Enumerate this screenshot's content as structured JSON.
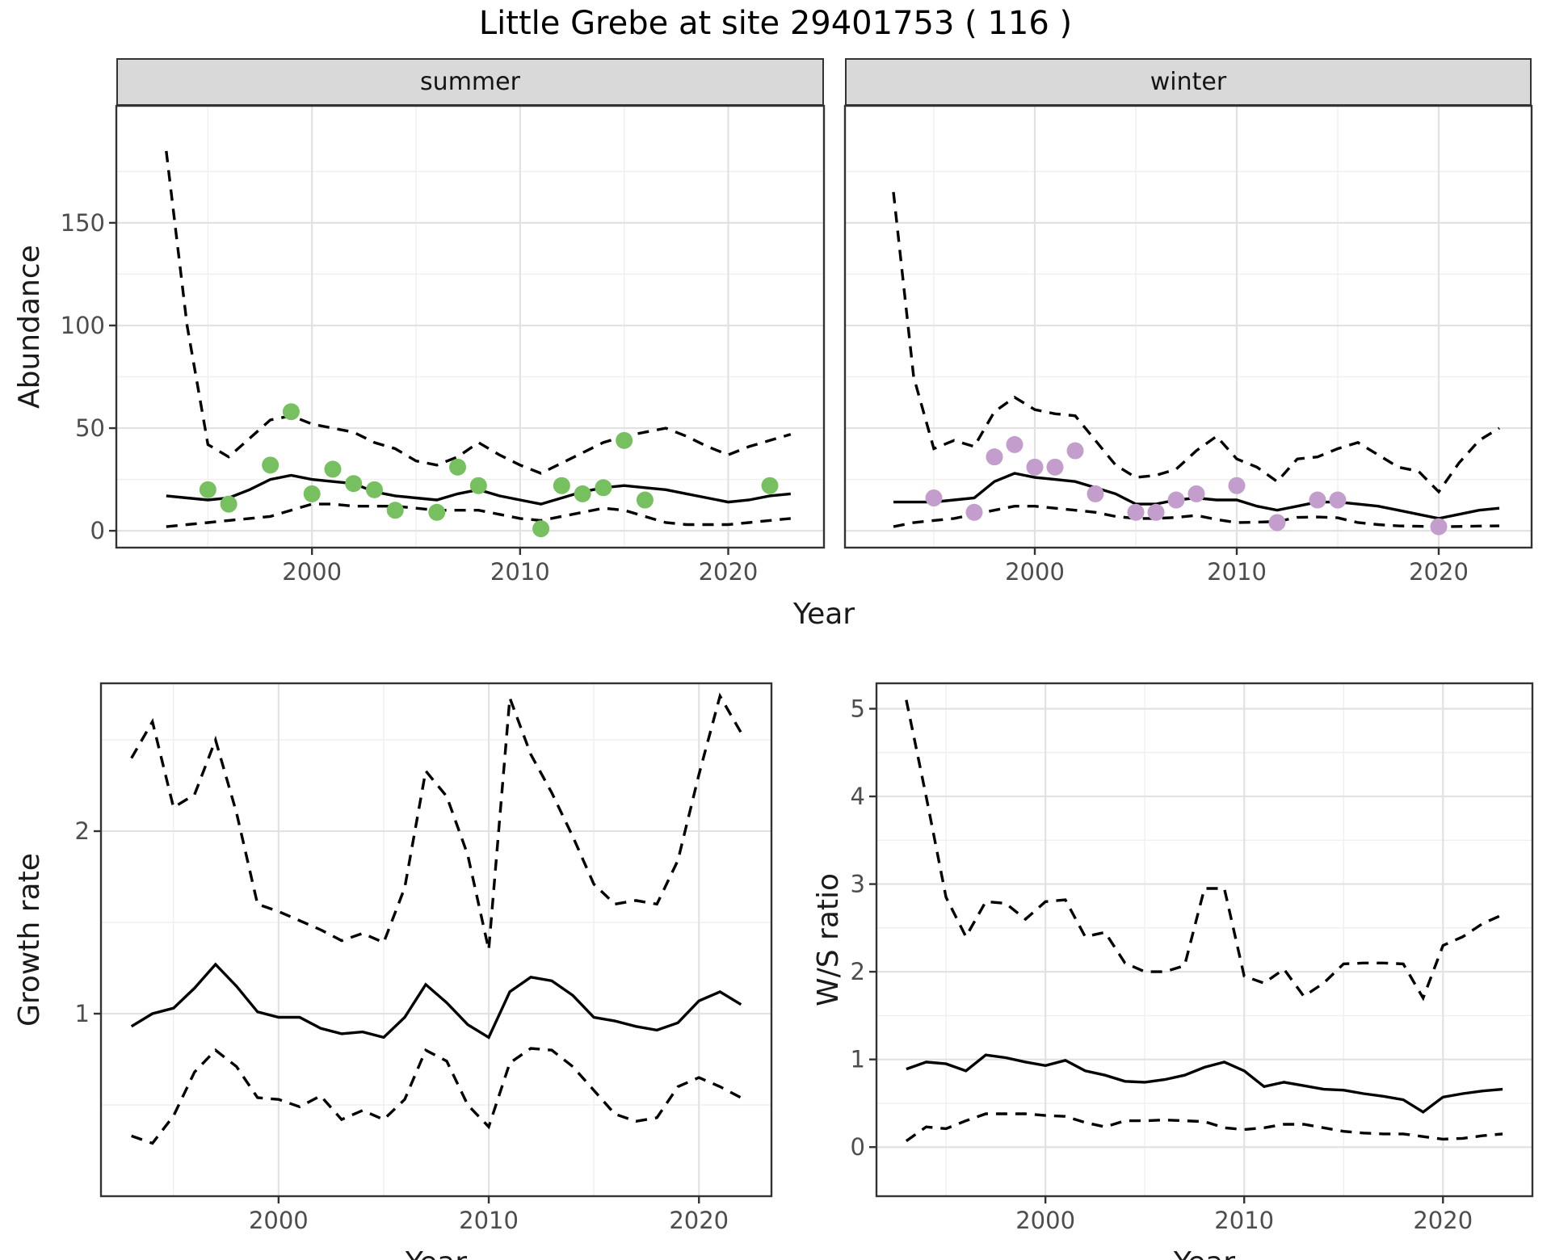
{
  "title": "Little Grebe at site 29401753 ( 116 )",
  "facets": {
    "summer": "summer",
    "winter": "winter"
  },
  "axes": {
    "x_title": "Year",
    "abundance_title": "Abundance",
    "growth_title": "Growth rate",
    "ws_title": "W/S ratio"
  },
  "colors": {
    "summer_points": "#77c05f",
    "winter_points": "#c39dcb",
    "line": "#000000",
    "grid_major": "#e2e2e2",
    "grid_minor": "#efefef",
    "strip_bg": "#d9d9d9",
    "panel_border": "#333333",
    "tick_text": "#4d4d4d"
  },
  "chart_data": [
    {
      "id": "abundance_summer",
      "type": "line",
      "facet_label": "summer",
      "ylabel": "Abundance",
      "xlabel": "Year",
      "xlim": [
        1990.6,
        2024.6
      ],
      "ylim": [
        -8.2,
        207
      ],
      "x_ticks": [
        2000,
        2010,
        2020
      ],
      "x_minor": [
        1995,
        2005,
        2015
      ],
      "y_ticks": [
        0,
        50,
        100,
        150
      ],
      "y_minor": [
        25,
        75,
        125,
        175
      ],
      "show_y_labels": true,
      "x": [
        1993,
        1994,
        1995,
        1996,
        1997,
        1998,
        1999,
        2000,
        2001,
        2002,
        2003,
        2004,
        2005,
        2006,
        2007,
        2008,
        2009,
        2010,
        2011,
        2012,
        2013,
        2014,
        2015,
        2016,
        2017,
        2018,
        2019,
        2020,
        2021,
        2022,
        2023
      ],
      "series": [
        {
          "name": "median",
          "style": "solid",
          "values": [
            17,
            16,
            15,
            16,
            20,
            25,
            27,
            25,
            24,
            23,
            19,
            17,
            16,
            15,
            18,
            20,
            17,
            15,
            13,
            16,
            19,
            21,
            22,
            21,
            20,
            18,
            16,
            14,
            15,
            17,
            18
          ]
        },
        {
          "name": "lower_ci",
          "style": "dashed",
          "values": [
            2,
            3,
            4,
            5,
            6,
            7,
            10,
            13,
            13,
            12,
            12,
            12,
            11,
            10,
            10,
            10,
            8,
            6,
            5,
            7,
            9,
            11,
            10,
            7,
            4,
            3,
            3,
            3,
            4,
            5,
            6
          ]
        },
        {
          "name": "upper_ci",
          "style": "dashed",
          "values": [
            185,
            100,
            42,
            36,
            45,
            54,
            56,
            52,
            50,
            48,
            43,
            40,
            34,
            32,
            36,
            43,
            37,
            32,
            28,
            33,
            38,
            43,
            46,
            48,
            50,
            46,
            41,
            37,
            41,
            44,
            47
          ]
        }
      ],
      "points": {
        "name": "observed_counts",
        "color_key": "summer_points",
        "xy": [
          [
            1995,
            20
          ],
          [
            1996,
            13
          ],
          [
            1998,
            32
          ],
          [
            1999,
            58
          ],
          [
            2000,
            18
          ],
          [
            2001,
            30
          ],
          [
            2002,
            23
          ],
          [
            2003,
            20
          ],
          [
            2004,
            10
          ],
          [
            2006,
            9
          ],
          [
            2007,
            31
          ],
          [
            2008,
            22
          ],
          [
            2011,
            1
          ],
          [
            2012,
            22
          ],
          [
            2013,
            18
          ],
          [
            2014,
            21
          ],
          [
            2015,
            44
          ],
          [
            2016,
            15
          ],
          [
            2022,
            22
          ]
        ]
      }
    },
    {
      "id": "abundance_winter",
      "type": "line",
      "facet_label": "winter",
      "ylabel": "Abundance",
      "xlabel": "Year",
      "xlim": [
        1990.6,
        2024.6
      ],
      "ylim": [
        -8.2,
        207
      ],
      "x_ticks": [
        2000,
        2010,
        2020
      ],
      "x_minor": [
        1995,
        2005,
        2015
      ],
      "y_ticks": [
        0,
        50,
        100,
        150
      ],
      "y_minor": [
        25,
        75,
        125,
        175
      ],
      "show_y_labels": false,
      "x": [
        1993,
        1994,
        1995,
        1996,
        1997,
        1998,
        1999,
        2000,
        2001,
        2002,
        2003,
        2004,
        2005,
        2006,
        2007,
        2008,
        2009,
        2010,
        2011,
        2012,
        2013,
        2014,
        2015,
        2016,
        2017,
        2018,
        2019,
        2020,
        2021,
        2022,
        2023
      ],
      "series": [
        {
          "name": "median",
          "style": "solid",
          "values": [
            14,
            14,
            14,
            15,
            16,
            24,
            28,
            26,
            25,
            24,
            21,
            18,
            13,
            13,
            15,
            16,
            15,
            15,
            12,
            10,
            12,
            14,
            14,
            13,
            12,
            10,
            8,
            6,
            8,
            10,
            11
          ]
        },
        {
          "name": "lower_ci",
          "style": "dashed",
          "values": [
            2,
            4,
            5,
            6,
            8,
            10,
            12,
            12,
            11,
            10,
            9,
            7,
            6,
            6,
            6.5,
            7.5,
            5.5,
            4,
            4.2,
            4.5,
            6.5,
            6.7,
            6.3,
            4,
            3,
            2.4,
            2.2,
            2,
            2.1,
            2.3,
            2.4
          ]
        },
        {
          "name": "upper_ci",
          "style": "dashed",
          "values": [
            165,
            75,
            40,
            44,
            41,
            58,
            65,
            59,
            57,
            56,
            44,
            32,
            26,
            27,
            30,
            39,
            46,
            35,
            31,
            24,
            35,
            36,
            40,
            43,
            37,
            31,
            29,
            19,
            33,
            44,
            50
          ]
        }
      ],
      "points": {
        "name": "observed_counts",
        "color_key": "winter_points",
        "xy": [
          [
            1995,
            16
          ],
          [
            1997,
            9
          ],
          [
            1998,
            36
          ],
          [
            1999,
            42
          ],
          [
            2000,
            31
          ],
          [
            2001,
            31
          ],
          [
            2002,
            39
          ],
          [
            2003,
            18
          ],
          [
            2005,
            9
          ],
          [
            2006,
            9
          ],
          [
            2007,
            15
          ],
          [
            2008,
            18
          ],
          [
            2010,
            22
          ],
          [
            2012,
            4
          ],
          [
            2014,
            15
          ],
          [
            2015,
            15
          ],
          [
            2020,
            2
          ]
        ]
      }
    },
    {
      "id": "growth_rate",
      "type": "line",
      "facet_label": null,
      "ylabel": "Growth rate",
      "xlabel": "Year",
      "xlim": [
        1991.55,
        2023.45
      ],
      "ylim": [
        0,
        2.81
      ],
      "x_ticks": [
        2000,
        2010,
        2020
      ],
      "x_minor": [
        1995,
        2005,
        2015
      ],
      "y_ticks": [
        1,
        2
      ],
      "y_minor": [
        0.5,
        1.5,
        2.5
      ],
      "show_y_labels": true,
      "x": [
        1993,
        1994,
        1995,
        1996,
        1997,
        1998,
        1999,
        2000,
        2001,
        2002,
        2003,
        2004,
        2005,
        2006,
        2007,
        2008,
        2009,
        2010,
        2011,
        2012,
        2013,
        2014,
        2015,
        2016,
        2017,
        2018,
        2019,
        2020,
        2021,
        2022
      ],
      "series": [
        {
          "name": "median",
          "style": "solid",
          "values": [
            0.93,
            1.0,
            1.03,
            1.14,
            1.27,
            1.15,
            1.01,
            0.98,
            0.98,
            0.92,
            0.89,
            0.9,
            0.87,
            0.98,
            1.16,
            1.06,
            0.94,
            0.87,
            1.12,
            1.2,
            1.18,
            1.1,
            0.98,
            0.96,
            0.93,
            0.91,
            0.95,
            1.07,
            1.12,
            1.05
          ]
        },
        {
          "name": "lower_ci",
          "style": "dashed",
          "values": [
            0.33,
            0.29,
            0.44,
            0.68,
            0.8,
            0.71,
            0.54,
            0.53,
            0.49,
            0.55,
            0.42,
            0.47,
            0.42,
            0.53,
            0.8,
            0.74,
            0.5,
            0.38,
            0.73,
            0.81,
            0.8,
            0.71,
            0.58,
            0.45,
            0.41,
            0.43,
            0.6,
            0.65,
            0.6,
            0.54
          ]
        },
        {
          "name": "upper_ci",
          "style": "dashed",
          "values": [
            2.4,
            2.6,
            2.13,
            2.2,
            2.5,
            2.1,
            1.6,
            1.56,
            1.51,
            1.46,
            1.4,
            1.44,
            1.39,
            1.69,
            2.33,
            2.19,
            1.87,
            1.35,
            2.73,
            2.42,
            2.21,
            1.97,
            1.71,
            1.6,
            1.62,
            1.6,
            1.84,
            2.31,
            2.74,
            2.54
          ]
        }
      ],
      "points": null
    },
    {
      "id": "ws_ratio",
      "type": "line",
      "facet_label": null,
      "ylabel": "W/S ratio",
      "xlabel": "Year",
      "xlim": [
        1991.5,
        2024.5
      ],
      "ylim": [
        -0.56,
        5.29
      ],
      "x_ticks": [
        2000,
        2010,
        2020
      ],
      "x_minor": [
        1995,
        2005,
        2015
      ],
      "y_ticks": [
        0,
        1,
        2,
        3,
        4,
        5
      ],
      "y_minor": [
        0.5,
        1.5,
        2.5,
        3.5,
        4.5
      ],
      "show_y_labels": true,
      "x": [
        1993,
        1994,
        1995,
        1996,
        1997,
        1998,
        1999,
        2000,
        2001,
        2002,
        2003,
        2004,
        2005,
        2006,
        2007,
        2008,
        2009,
        2010,
        2011,
        2012,
        2013,
        2014,
        2015,
        2016,
        2017,
        2018,
        2019,
        2020,
        2021,
        2022,
        2023
      ],
      "series": [
        {
          "name": "median",
          "style": "solid",
          "values": [
            0.89,
            0.97,
            0.95,
            0.87,
            1.05,
            1.02,
            0.97,
            0.93,
            0.99,
            0.87,
            0.82,
            0.75,
            0.74,
            0.77,
            0.82,
            0.91,
            0.97,
            0.87,
            0.69,
            0.74,
            0.7,
            0.66,
            0.65,
            0.61,
            0.58,
            0.54,
            0.4,
            0.57,
            0.61,
            0.64,
            0.66
          ]
        },
        {
          "name": "lower_ci",
          "style": "dashed",
          "values": [
            0.07,
            0.23,
            0.21,
            0.3,
            0.38,
            0.38,
            0.38,
            0.36,
            0.35,
            0.28,
            0.23,
            0.3,
            0.3,
            0.31,
            0.3,
            0.29,
            0.22,
            0.2,
            0.22,
            0.26,
            0.26,
            0.22,
            0.18,
            0.16,
            0.15,
            0.15,
            0.12,
            0.09,
            0.1,
            0.13,
            0.15
          ]
        },
        {
          "name": "upper_ci",
          "style": "dashed",
          "values": [
            5.1,
            4.0,
            2.85,
            2.4,
            2.8,
            2.78,
            2.6,
            2.8,
            2.82,
            2.4,
            2.45,
            2.1,
            2.0,
            2.0,
            2.07,
            2.95,
            2.95,
            1.95,
            1.87,
            2.03,
            1.72,
            1.87,
            2.09,
            2.1,
            2.1,
            2.09,
            1.7,
            2.3,
            2.4,
            2.55,
            2.65
          ]
        }
      ],
      "points": null
    }
  ]
}
